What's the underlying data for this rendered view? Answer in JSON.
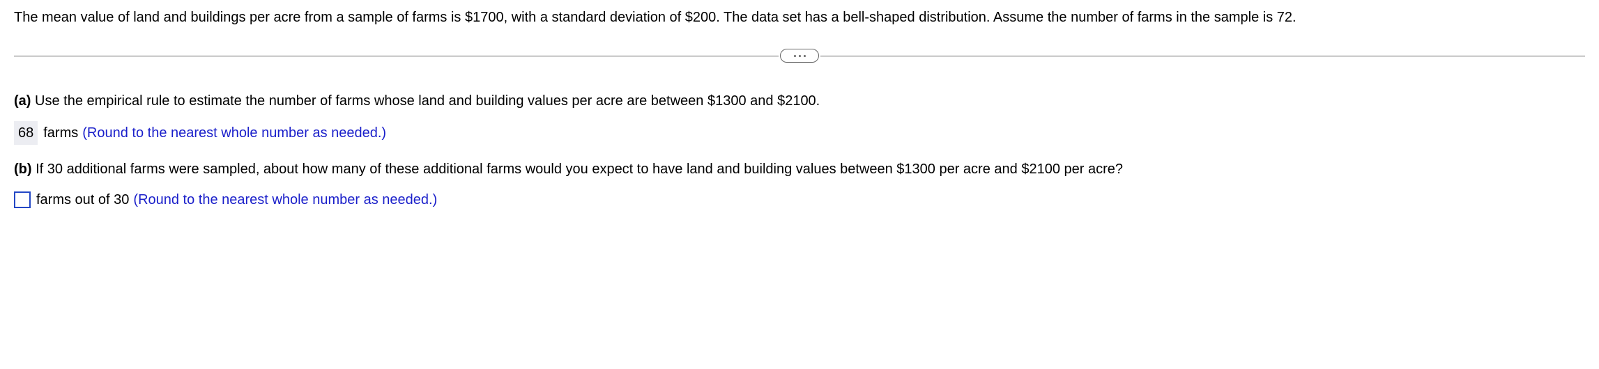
{
  "problem": {
    "statement": "The mean value of land and buildings per acre from a sample of farms is $1700, with a standard deviation of $200. The data set has a bell-shaped distribution. Assume the number of farms in the sample is 72."
  },
  "partA": {
    "label": "(a)",
    "text": " Use the empirical rule to estimate the number of farms whose land and building values per acre are between $1300 and $2100.",
    "answer_value": "68",
    "unit": "farms",
    "hint": "(Round to the nearest whole number as needed.)"
  },
  "partB": {
    "label": "(b)",
    "text": " If 30 additional farms were sampled, about how many of these additional farms would you expect to have land and building values between $1300 per acre and $2100 per acre?",
    "unit": "farms out of 30",
    "hint": "(Round to the nearest whole number as needed.)"
  }
}
